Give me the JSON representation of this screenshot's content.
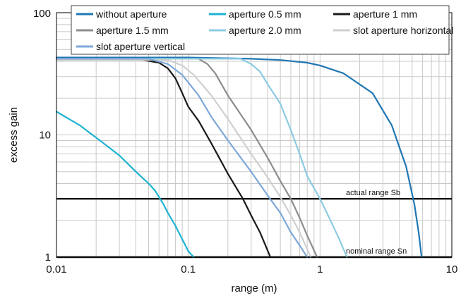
{
  "chart_data": {
    "type": "line",
    "title": "",
    "xlabel": "range (m)",
    "ylabel": "excess gain",
    "xscale": "log",
    "yscale": "log",
    "xlim": [
      0.01,
      10
    ],
    "ylim": [
      1,
      100
    ],
    "grid": true,
    "legend": "top",
    "x_ticks": [
      {
        "value": 0.01,
        "label": "0.01"
      },
      {
        "value": 0.1,
        "label": "0.1"
      },
      {
        "value": 1,
        "label": "1"
      },
      {
        "value": 10,
        "label": "10"
      }
    ],
    "y_ticks": [
      {
        "value": 1,
        "label": "1"
      },
      {
        "value": 10,
        "label": "10"
      },
      {
        "value": 100,
        "label": "100"
      }
    ],
    "series": [
      {
        "name": "without aperture",
        "color": "#1f77b4",
        "x": [
          0.01,
          0.1,
          0.3,
          0.5,
          0.8,
          1.0,
          1.5,
          2.5,
          3.5,
          4.5,
          5.2,
          5.6,
          5.9
        ],
        "y": [
          43,
          43,
          42,
          41,
          39,
          37,
          32,
          22,
          12,
          5.5,
          2.7,
          1.6,
          1
        ]
      },
      {
        "name": "aperture 0.5 mm",
        "color": "#1eb4d2",
        "x": [
          0.01,
          0.015,
          0.02,
          0.03,
          0.04,
          0.05,
          0.056,
          0.06,
          0.065,
          0.07,
          0.08,
          0.09,
          0.1,
          0.11
        ],
        "y": [
          15.5,
          12,
          9.5,
          6.8,
          5,
          4,
          3.5,
          3.1,
          2.7,
          2.3,
          1.8,
          1.4,
          1.12,
          1
        ]
      },
      {
        "name": "aperture 1 mm",
        "color": "#1a1a1a",
        "x": [
          0.01,
          0.04,
          0.06,
          0.07,
          0.08,
          0.09,
          0.1,
          0.12,
          0.15,
          0.2,
          0.26,
          0.3,
          0.35,
          0.42
        ],
        "y": [
          42,
          42,
          39,
          35,
          29,
          22,
          17,
          13,
          8.5,
          4.8,
          3,
          2.2,
          1.6,
          1
        ]
      },
      {
        "name": "aperture 1.5 mm",
        "color": "#8c8c8c",
        "x": [
          0.01,
          0.12,
          0.14,
          0.16,
          0.2,
          0.3,
          0.4,
          0.5,
          0.6,
          0.7,
          0.8,
          0.95
        ],
        "y": [
          42,
          42,
          38,
          32,
          21,
          11,
          6.5,
          4.2,
          3,
          2.1,
          1.5,
          1
        ]
      },
      {
        "name": "aperture 2.0 mm",
        "color": "#8ccbe1",
        "x": [
          0.01,
          0.25,
          0.3,
          0.35,
          0.4,
          0.5,
          0.6,
          0.7,
          0.8,
          1.0,
          1.2,
          1.4,
          1.6
        ],
        "y": [
          42,
          42,
          38,
          33,
          26,
          18,
          11,
          7,
          4.6,
          3,
          2,
          1.4,
          1
        ]
      },
      {
        "name": "slot aperture horizontal",
        "color": "#cfcfcf",
        "x": [
          0.01,
          0.07,
          0.09,
          0.11,
          0.15,
          0.2,
          0.3,
          0.4,
          0.5,
          0.6,
          0.7,
          0.85
        ],
        "y": [
          41,
          41,
          37,
          31,
          21,
          13.5,
          7,
          4.5,
          3.1,
          2.2,
          1.6,
          1
        ]
      },
      {
        "name": "slot aperture vertical",
        "color": "#7ea8d8",
        "x": [
          0.01,
          0.05,
          0.07,
          0.09,
          0.12,
          0.15,
          0.2,
          0.3,
          0.4,
          0.5,
          0.6,
          0.7,
          0.8
        ],
        "y": [
          42,
          42,
          38,
          31,
          21,
          14,
          9,
          5,
          3.2,
          2.3,
          1.6,
          1.25,
          1
        ]
      }
    ],
    "annotations": [
      {
        "text": "actual range Sb",
        "y": 3
      },
      {
        "text": "nominal range Sn",
        "y": 1
      }
    ]
  }
}
